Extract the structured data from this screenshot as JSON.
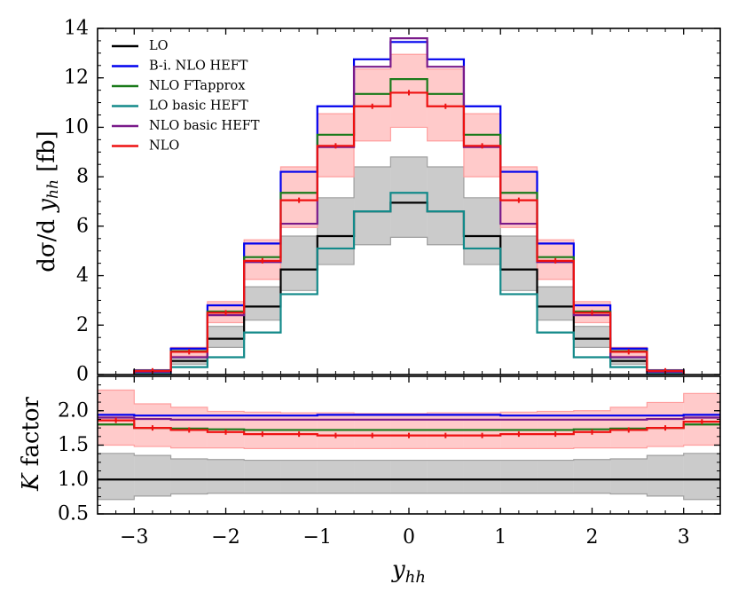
{
  "chart_data": [
    {
      "type": "line",
      "panel": "main",
      "ylabel": "dσ/d y_hh [fb]",
      "xlim": [
        -3.4,
        3.4
      ],
      "ylim": [
        0,
        14
      ],
      "yticks": [
        0,
        2,
        4,
        6,
        8,
        10,
        12,
        14
      ],
      "legend_position": "top-left",
      "bin_edges": [
        -3.0,
        -2.6,
        -2.2,
        -1.8,
        -1.4,
        -1.0,
        -0.6,
        -0.2,
        0.2,
        0.6,
        1.0,
        1.4,
        1.8,
        2.2,
        2.6,
        3.0
      ],
      "series": [
        {
          "name": "LO",
          "color": "#000000",
          "values": [
            0.08,
            0.55,
            1.45,
            2.75,
            4.25,
            5.6,
            6.6,
            6.95,
            6.6,
            5.6,
            4.25,
            2.75,
            1.45,
            0.55,
            0.08
          ]
        },
        {
          "name": "B-i. NLO HEFT",
          "color": "#0000ee",
          "values": [
            0.17,
            1.05,
            2.8,
            5.3,
            8.2,
            10.85,
            12.75,
            13.45,
            12.75,
            10.85,
            8.2,
            5.3,
            2.8,
            1.05,
            0.17
          ]
        },
        {
          "name": "NLO FTapprox",
          "color": "#1a7a1a",
          "values": [
            0.16,
            0.95,
            2.55,
            4.75,
            7.35,
            9.7,
            11.35,
            11.95,
            11.35,
            9.7,
            7.35,
            4.75,
            2.55,
            0.95,
            0.16
          ]
        },
        {
          "name": "LO basic HEFT",
          "color": "#138a8a",
          "values": [
            0.04,
            0.3,
            0.7,
            1.7,
            3.25,
            5.1,
            6.6,
            7.35,
            6.6,
            5.1,
            3.25,
            1.7,
            0.7,
            0.3,
            0.04
          ]
        },
        {
          "name": "NLO basic HEFT",
          "color": "#7a1a8a",
          "values": [
            0.1,
            0.7,
            2.4,
            4.55,
            6.1,
            9.2,
            12.45,
            13.6,
            12.45,
            9.2,
            6.1,
            4.55,
            2.4,
            0.7,
            0.1
          ]
        },
        {
          "name": "NLO",
          "color": "#ee1111",
          "values": [
            0.15,
            0.92,
            2.5,
            4.6,
            7.05,
            9.25,
            10.85,
            11.4,
            10.85,
            9.25,
            7.05,
            4.6,
            2.5,
            0.92,
            0.15
          ]
        }
      ],
      "bands": [
        {
          "of": "LO",
          "color": "#a0a0a0",
          "low": [
            0.06,
            0.42,
            1.1,
            2.2,
            3.4,
            4.45,
            5.25,
            5.55,
            5.25,
            4.45,
            3.4,
            2.2,
            1.1,
            0.42,
            0.06
          ],
          "high": [
            0.11,
            0.75,
            1.95,
            3.55,
            5.6,
            7.15,
            8.4,
            8.8,
            8.4,
            7.15,
            5.6,
            3.55,
            1.95,
            0.75,
            0.11
          ]
        },
        {
          "of": "NLO",
          "color": "#ff9f9f",
          "low": [
            0.12,
            0.75,
            2.1,
            3.85,
            5.95,
            8.0,
            9.45,
            10.0,
            9.45,
            8.0,
            5.95,
            3.85,
            2.1,
            0.75,
            0.12
          ],
          "high": [
            0.2,
            1.1,
            2.95,
            5.45,
            8.4,
            10.55,
            12.35,
            12.95,
            12.35,
            10.55,
            8.4,
            5.45,
            2.95,
            1.1,
            0.2
          ]
        }
      ]
    },
    {
      "type": "line",
      "panel": "ratio",
      "ylabel": "K factor",
      "xlabel": "y_hh",
      "xlim": [
        -3.4,
        3.4
      ],
      "ylim": [
        0.5,
        2.5
      ],
      "yticks": [
        0.5,
        1.0,
        1.5,
        2.0
      ],
      "yticklabels": [
        "0.5",
        "1.0",
        "1.5",
        "2.0"
      ],
      "xticks": [
        -3,
        -2,
        -1,
        0,
        1,
        2,
        3
      ],
      "xticklabels": [
        "−3",
        "−2",
        "−1",
        "0",
        "1",
        "2",
        "3"
      ],
      "bin_edges": [
        -3.4,
        -3.0,
        -2.6,
        -2.2,
        -1.8,
        -1.4,
        -1.0,
        -0.6,
        -0.2,
        0.2,
        0.6,
        1.0,
        1.4,
        1.8,
        2.2,
        2.6,
        3.0,
        3.4
      ],
      "series": [
        {
          "name": "LO",
          "color": "#000000",
          "values": [
            1.0,
            1.0,
            1.0,
            1.0,
            1.0,
            1.0,
            1.0,
            1.0,
            1.0,
            1.0,
            1.0,
            1.0,
            1.0,
            1.0,
            1.0,
            1.0,
            1.0
          ]
        },
        {
          "name": "B-i. NLO HEFT",
          "color": "#0000ee",
          "values": [
            1.94,
            1.93,
            1.93,
            1.93,
            1.93,
            1.93,
            1.94,
            1.94,
            1.94,
            1.94,
            1.94,
            1.93,
            1.93,
            1.93,
            1.93,
            1.93,
            1.94
          ]
        },
        {
          "name": "NLO FTapprox",
          "color": "#1a7a1a",
          "values": [
            1.8,
            1.75,
            1.74,
            1.73,
            1.72,
            1.72,
            1.72,
            1.72,
            1.72,
            1.72,
            1.72,
            1.72,
            1.72,
            1.73,
            1.74,
            1.75,
            1.8
          ]
        },
        {
          "name": "NLO basic HEFT",
          "color": "#7a1a8a",
          "values": [
            1.9,
            1.88,
            1.87,
            1.87,
            1.87,
            1.87,
            1.87,
            1.87,
            1.87,
            1.87,
            1.87,
            1.87,
            1.87,
            1.87,
            1.87,
            1.88,
            1.9
          ]
        },
        {
          "name": "NLO",
          "color": "#ee1111",
          "values": [
            1.86,
            1.75,
            1.72,
            1.69,
            1.66,
            1.66,
            1.64,
            1.64,
            1.64,
            1.64,
            1.64,
            1.66,
            1.66,
            1.69,
            1.72,
            1.75,
            1.84
          ]
        }
      ],
      "bands": [
        {
          "of": "LO",
          "color": "#a0a0a0",
          "low": [
            0.71,
            0.76,
            0.79,
            0.8,
            0.8,
            0.8,
            0.8,
            0.8,
            0.8,
            0.8,
            0.8,
            0.8,
            0.8,
            0.8,
            0.79,
            0.76,
            0.71
          ],
          "high": [
            1.38,
            1.35,
            1.3,
            1.29,
            1.28,
            1.28,
            1.28,
            1.28,
            1.28,
            1.28,
            1.28,
            1.28,
            1.28,
            1.29,
            1.3,
            1.35,
            1.38
          ]
        },
        {
          "of": "NLO",
          "color": "#ff9f9f",
          "low": [
            1.5,
            1.48,
            1.46,
            1.46,
            1.45,
            1.45,
            1.45,
            1.45,
            1.45,
            1.45,
            1.45,
            1.45,
            1.45,
            1.46,
            1.46,
            1.48,
            1.5
          ],
          "high": [
            2.3,
            2.1,
            2.05,
            1.99,
            1.98,
            1.97,
            1.97,
            1.96,
            1.96,
            1.97,
            1.97,
            1.98,
            1.99,
            2.0,
            2.05,
            2.12,
            2.25
          ]
        }
      ]
    }
  ]
}
